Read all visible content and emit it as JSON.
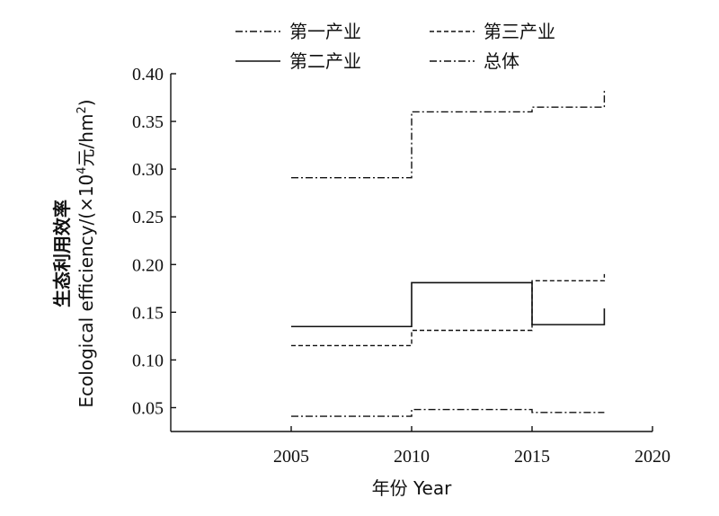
{
  "chart_data": {
    "type": "line",
    "step": true,
    "x": [
      2005,
      2010,
      2015,
      2018
    ],
    "series": [
      {
        "name": "第一产业",
        "values": [
          0.041,
          0.048,
          0.045,
          0.045
        ],
        "dash": "dashdot"
      },
      {
        "name": "第二产业",
        "values": [
          0.135,
          0.181,
          0.137,
          0.154
        ],
        "dash": "solid"
      },
      {
        "name": "第三产业",
        "values": [
          0.115,
          0.131,
          0.183,
          0.19
        ],
        "dash": "dashed"
      },
      {
        "name": "总体",
        "values": [
          0.291,
          0.36,
          0.365,
          0.383
        ],
        "dash": "dashdot"
      }
    ],
    "xlabel": "年份 Year",
    "ylabel_cn": "生态利用效率",
    "ylabel_en_prefix": "Ecological efficiency/(×10",
    "ylabel_en_sup1": "4",
    "ylabel_en_mid": "元/hm",
    "ylabel_en_sup2": "2",
    "ylabel_en_suffix": ")",
    "xlim": [
      2000,
      2020
    ],
    "ylim": [
      0.025,
      0.4
    ],
    "x_ticks": [
      2005,
      2010,
      2015,
      2020
    ],
    "y_ticks": [
      0.05,
      0.1,
      0.15,
      0.2,
      0.25,
      0.3,
      0.35,
      0.4
    ],
    "y_tick_labels": [
      "0.05",
      "0.10",
      "0.15",
      "0.20",
      "0.25",
      "0.30",
      "0.35",
      "0.40"
    ],
    "grid": false,
    "legend_position": "top"
  }
}
